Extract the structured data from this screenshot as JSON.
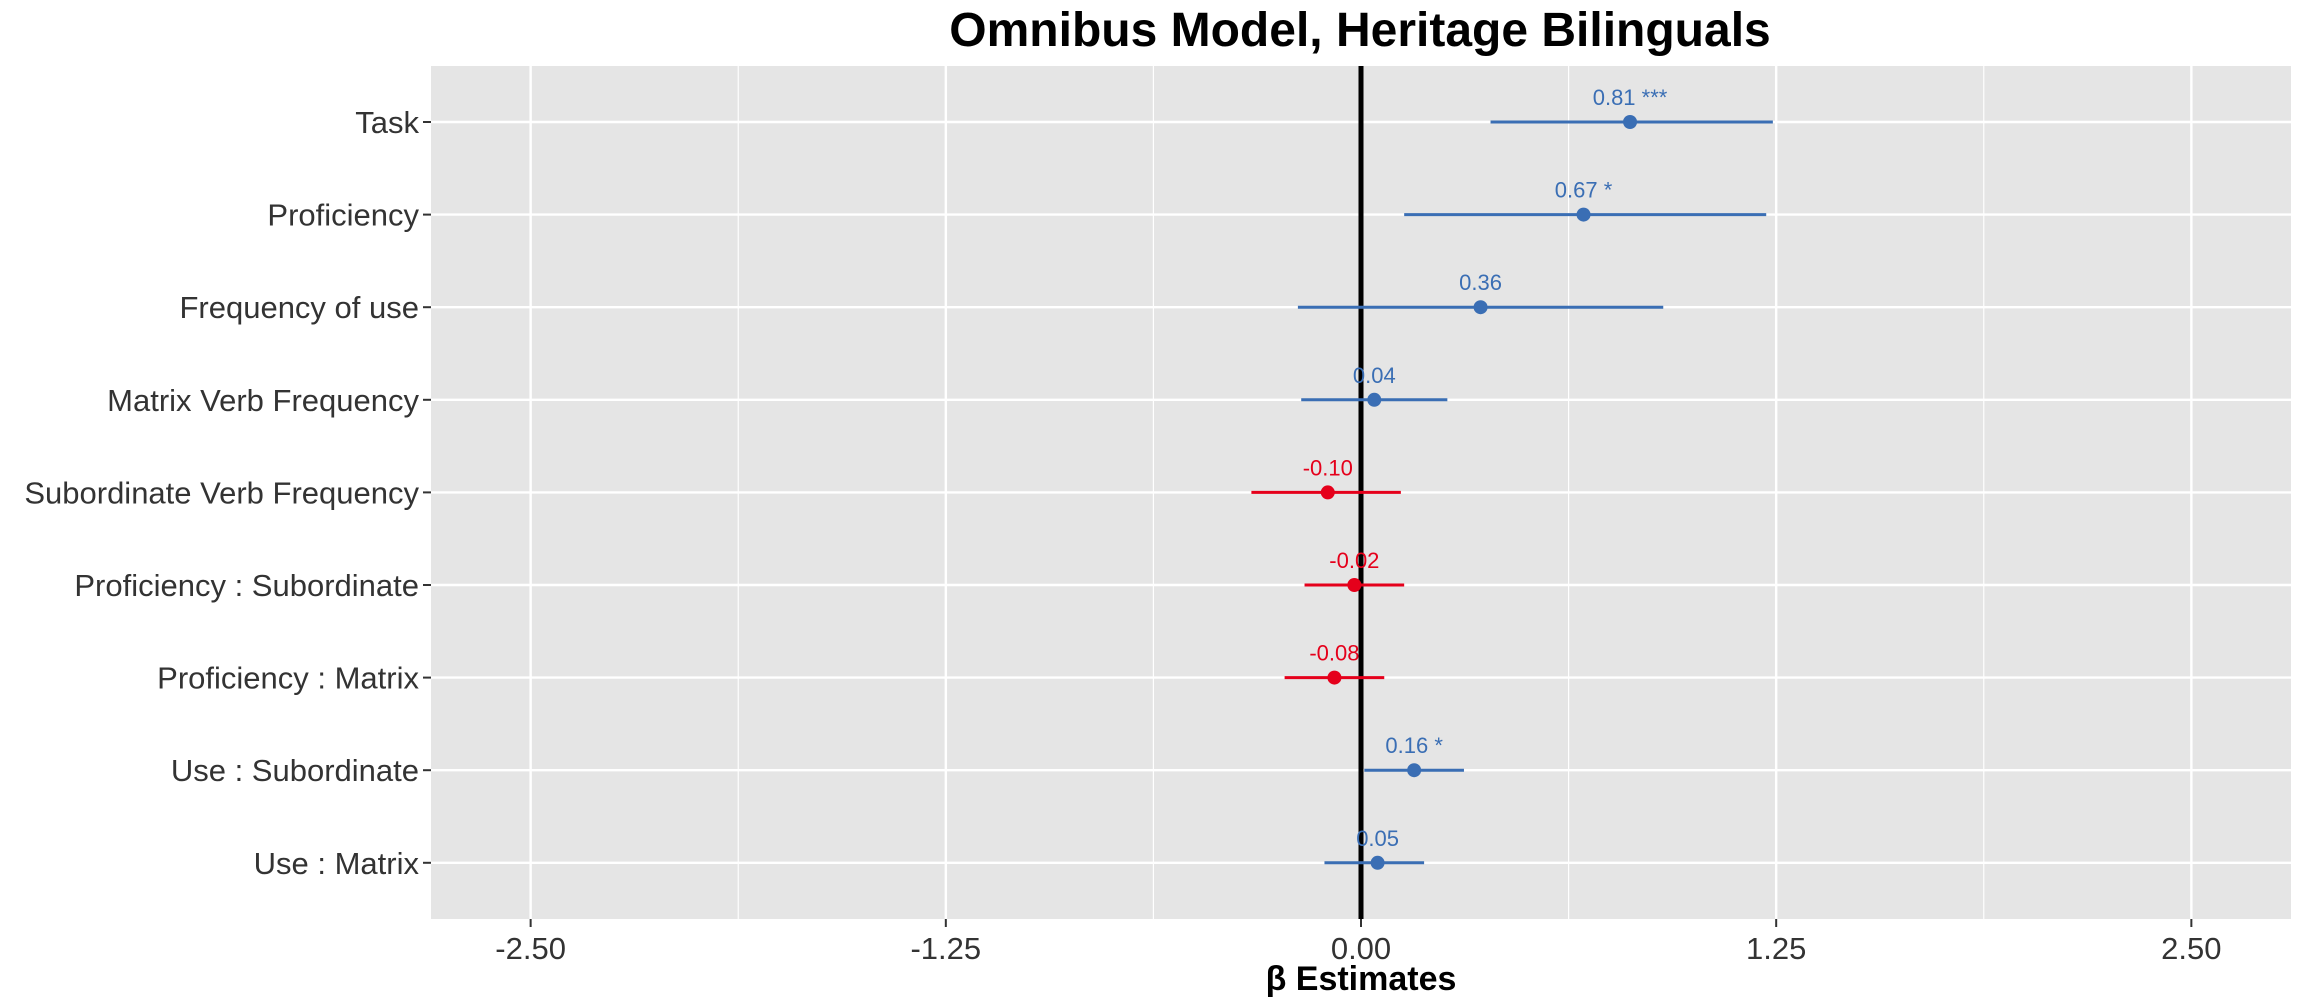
{
  "chart_data": {
    "type": "scatter",
    "title": "Omnibus Model, Heritage Bilinguals",
    "xlabel": "β Estimates",
    "ylabel": "",
    "xlim": [
      -2.8,
      2.8
    ],
    "x_ticks": [
      -2.5,
      -1.25,
      0,
      1.25,
      2.5
    ],
    "x_tick_labels": [
      "-2.50",
      "-1.25",
      "0.00",
      "1.25",
      "2.50"
    ],
    "reference_line": 0,
    "grid": true,
    "legend": "none",
    "colors": {
      "positive": "#3a6eb4",
      "negative": "#e5001b",
      "panel": "#e5e5e5",
      "grid": "#ffffff"
    },
    "terms": [
      {
        "label": "Task",
        "estimate": 0.81,
        "lower": 0.39,
        "upper": 1.24,
        "text": "0.81 ***"
      },
      {
        "label": "Proficiency",
        "estimate": 0.67,
        "lower": 0.13,
        "upper": 1.22,
        "text": "0.67 *"
      },
      {
        "label": "Frequency of use",
        "estimate": 0.36,
        "lower": -0.19,
        "upper": 0.91,
        "text": "0.36"
      },
      {
        "label": "Matrix Verb Frequency",
        "estimate": 0.04,
        "lower": -0.18,
        "upper": 0.26,
        "text": "0.04"
      },
      {
        "label": "Subordinate Verb Frequency",
        "estimate": -0.1,
        "lower": -0.33,
        "upper": 0.12,
        "text": "-0.10"
      },
      {
        "label": "Proficiency : Subordinate",
        "estimate": -0.02,
        "lower": -0.17,
        "upper": 0.13,
        "text": "-0.02"
      },
      {
        "label": "Proficiency : Matrix",
        "estimate": -0.08,
        "lower": -0.23,
        "upper": 0.07,
        "text": "-0.08"
      },
      {
        "label": "Use : Subordinate",
        "estimate": 0.16,
        "lower": 0.01,
        "upper": 0.31,
        "text": "0.16 *"
      },
      {
        "label": "Use : Matrix",
        "estimate": 0.05,
        "lower": -0.11,
        "upper": 0.19,
        "text": "0.05"
      }
    ]
  }
}
